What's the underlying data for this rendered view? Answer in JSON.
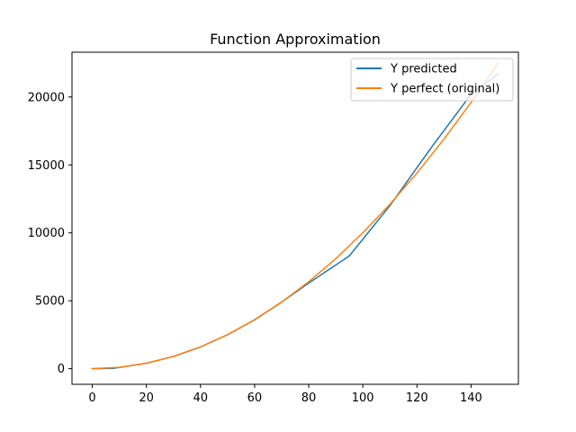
{
  "chart_data": {
    "type": "line",
    "title": "Function Approximation",
    "xlabel": "",
    "ylabel": "",
    "xlim": [
      -7.5,
      157.5
    ],
    "ylim": [
      -1150,
      23300
    ],
    "x_ticks": [
      0,
      20,
      40,
      60,
      80,
      100,
      120,
      140
    ],
    "y_ticks": [
      0,
      5000,
      10000,
      15000,
      20000
    ],
    "grid": false,
    "legend_position": "top-right",
    "colors": {
      "predicted": "#1f77b4",
      "perfect": "#ff7f0e"
    },
    "series": [
      {
        "name": "Y predicted",
        "color": "#1f77b4",
        "x": [
          0,
          8,
          20,
          30,
          40,
          50,
          60,
          70,
          80,
          95,
          110,
          125,
          140,
          150
        ],
        "y": [
          0,
          30,
          400,
          900,
          1600,
          2500,
          3600,
          4900,
          6300,
          8300,
          12000,
          16200,
          20200,
          21700
        ]
      },
      {
        "name": "Y perfect (original)",
        "color": "#ff7f0e",
        "x": [
          0,
          10,
          20,
          30,
          40,
          50,
          60,
          70,
          80,
          90,
          100,
          110,
          120,
          130,
          140,
          150
        ],
        "y": [
          0,
          100,
          400,
          900,
          1600,
          2500,
          3600,
          4900,
          6400,
          8100,
          10000,
          12100,
          14400,
          16900,
          19600,
          22500
        ]
      }
    ]
  }
}
